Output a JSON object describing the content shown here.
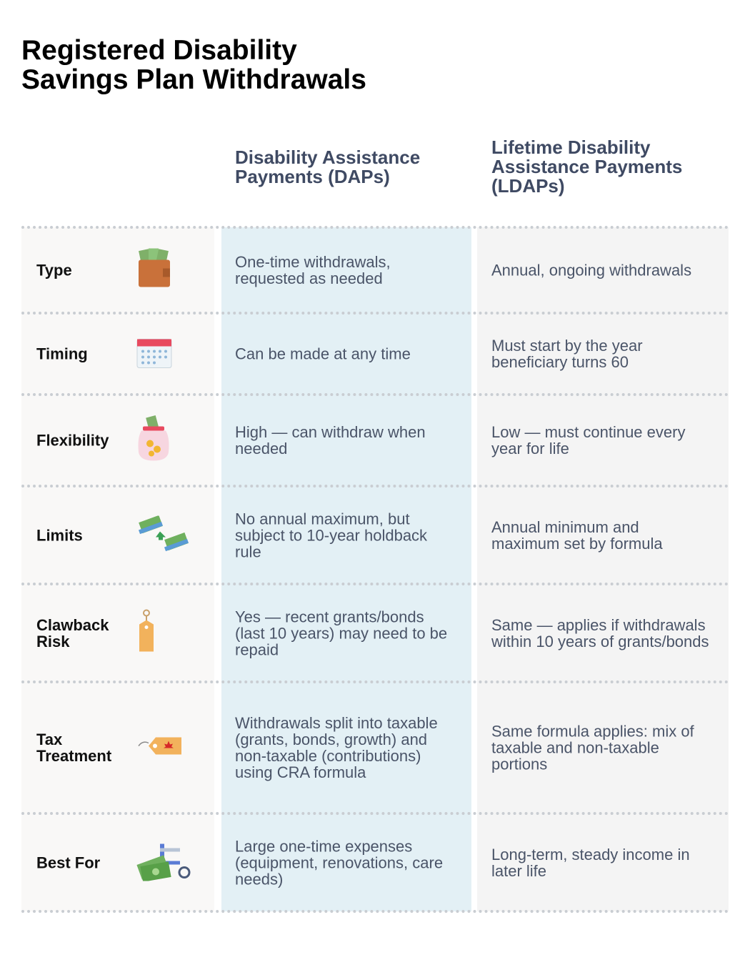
{
  "header": {
    "title": "Registered Disability Savings Plan Withdrawals"
  },
  "table": {
    "columns": [
      "Disability Assistance Payments (DAPs)",
      "Lifetime Disability Assistance Payments (LDAPs)"
    ],
    "rows": [
      [
        "Type",
        "One-time withdrawals, requested as needed",
        "Annual, ongoing withdrawals"
      ],
      [
        "Timing",
        "Can be made at any time",
        "Must start by the year beneficiary turns 60"
      ],
      [
        "Flexibility",
        "High — can withdraw when needed",
        "Low — must continue every year for life"
      ],
      [
        "Limits",
        "No annual maximum, but subject to 10-year holdback rule",
        "Annual minimum and maximum set by formula"
      ],
      [
        "Clawback Risk",
        "Yes — recent grants/bonds (last 10 years) may need to be repaid",
        "Same — applies if withdrawals within 10 years of grants/bonds"
      ],
      [
        "Tax Treatment",
        "Withdrawals split into taxable (grants, bonds, growth) and non-taxable (contributions) using CRA formula",
        "Same formula applies: mix of taxable and non-taxable portions"
      ],
      [
        "Best For",
        "Large one-time expenses (equipment, renovations, care needs)",
        "Long-term, steady income in later life"
      ]
    ]
  }
}
